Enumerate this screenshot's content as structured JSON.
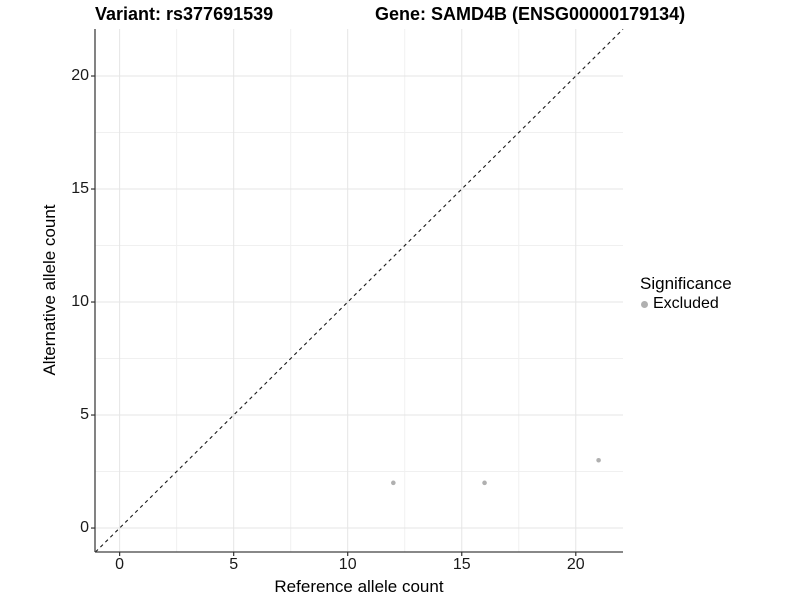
{
  "header": {
    "title_left": "Variant: rs377691539",
    "title_right": "Gene: SAMD4B (ENSG00000179134)"
  },
  "axes": {
    "x_label": "Reference allele count",
    "y_label": "Alternative allele count"
  },
  "legend": {
    "title": "Significance",
    "items": [
      {
        "label": "Excluded",
        "color": "#b0b0b0"
      }
    ]
  },
  "chart_data": {
    "type": "scatter",
    "title": "Variant: rs377691539 | Gene: SAMD4B (ENSG00000179134)",
    "xlabel": "Reference allele count",
    "ylabel": "Alternative allele count",
    "xlim": [
      -1.08,
      22.07
    ],
    "ylim": [
      -1.06,
      22.08
    ],
    "x_major_ticks": [
      0,
      5,
      10,
      15,
      20
    ],
    "y_major_ticks": [
      0,
      5,
      10,
      15,
      20
    ],
    "x_minor_ticks": [
      2.5,
      7.5,
      12.5,
      17.5
    ],
    "y_minor_ticks": [
      2.5,
      7.5,
      12.5,
      17.5
    ],
    "grid": "major+minor",
    "legend_position": "right",
    "series": [
      {
        "name": "Excluded",
        "color": "#b0b0b0",
        "points": [
          [
            12,
            2
          ],
          [
            16,
            2
          ],
          [
            21,
            3
          ]
        ]
      }
    ],
    "reference_line": {
      "type": "identity",
      "style": "dashed",
      "color": "#1a1a1a"
    }
  },
  "colors": {
    "background": "#ffffff",
    "grid_major": "#e5e5e5",
    "grid_minor": "#f0f0f0",
    "axis_line": "#404040",
    "tick_mark": "#333333",
    "point": "#b0b0b0",
    "dashed_line": "#1a1a1a"
  }
}
